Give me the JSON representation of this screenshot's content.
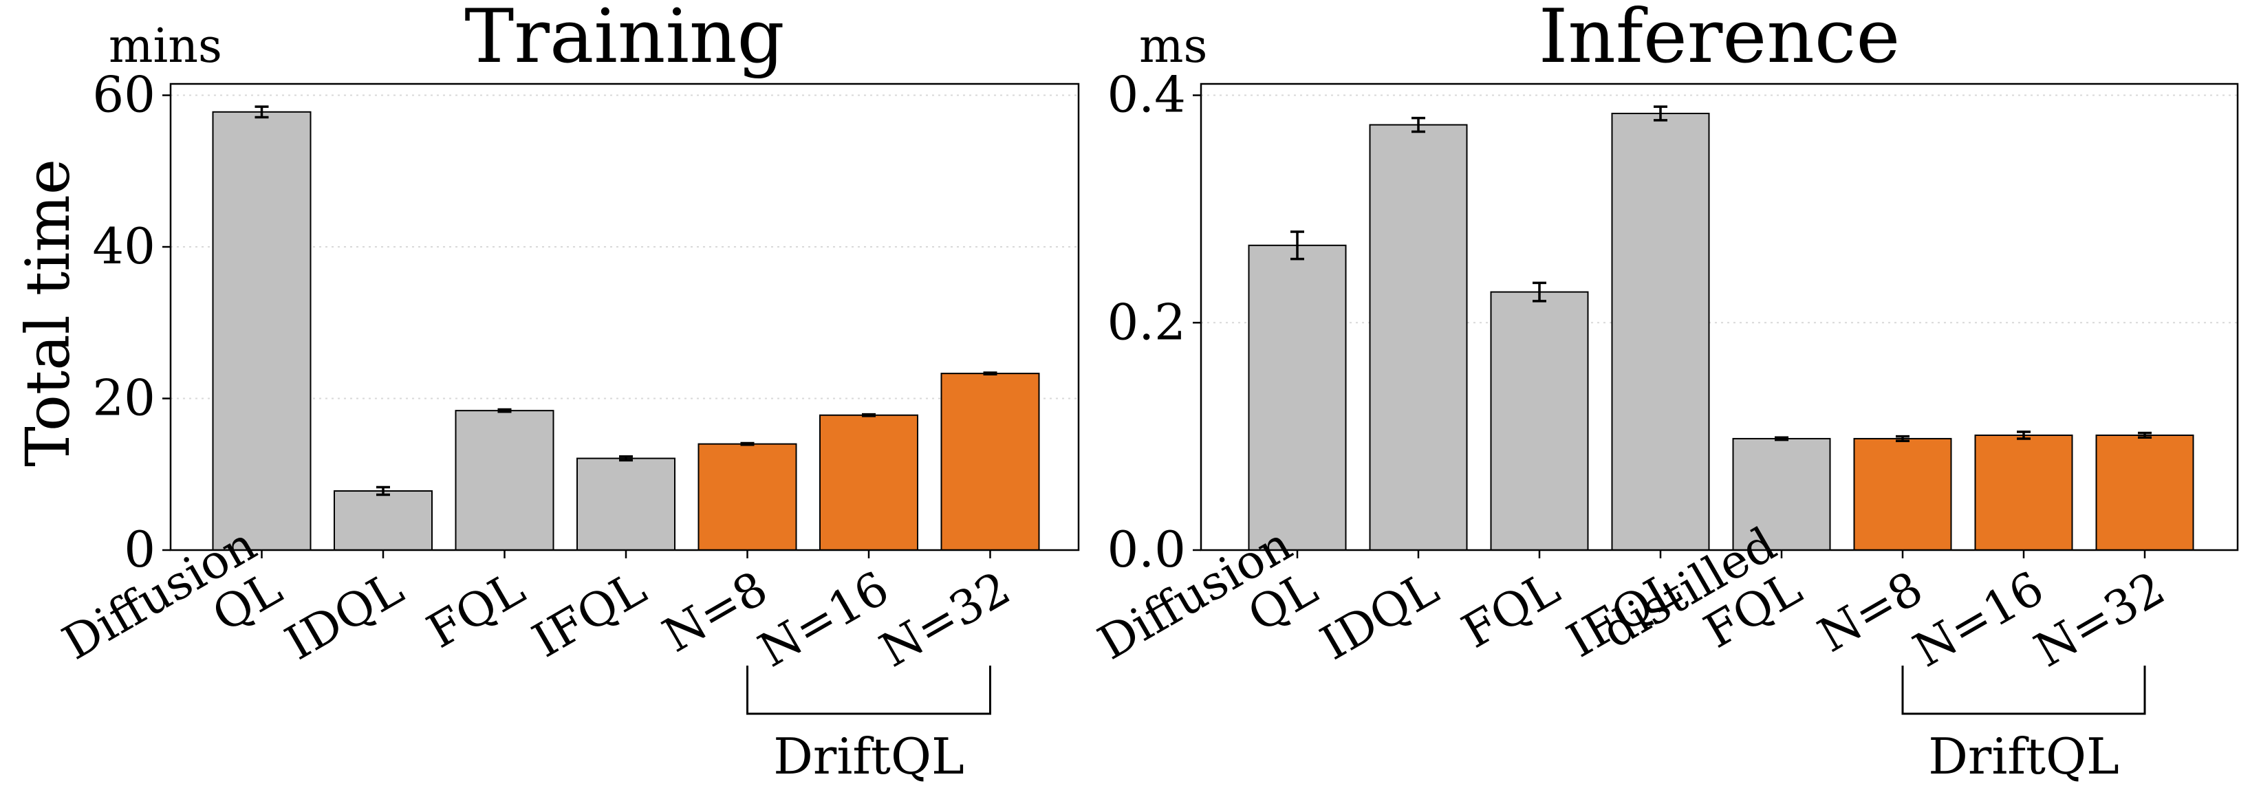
{
  "shared": {
    "ylabel": "Total time",
    "colors": {
      "baseline": "#c0c0c0",
      "driftql": "#e87722",
      "edge": "#000000",
      "grid": "#d9d9d9"
    }
  },
  "chart_data": [
    {
      "type": "bar",
      "title": "Training",
      "unit": "mins",
      "ylabel": "Total time",
      "ylim": [
        0,
        61.5
      ],
      "yticks": [
        0,
        20,
        40,
        60
      ],
      "ytick_labels": [
        "0",
        "20",
        "40",
        "60"
      ],
      "grid": true,
      "categories": [
        [
          "Diffusion",
          "QL"
        ],
        [
          "IDQL"
        ],
        [
          "FQL"
        ],
        [
          "IFQL"
        ],
        [
          "N=8"
        ],
        [
          "N=16"
        ],
        [
          "N=32"
        ]
      ],
      "values": [
        57.8,
        7.8,
        18.4,
        12.1,
        14.0,
        17.8,
        23.3
      ],
      "errors": [
        0.7,
        0.5,
        0.15,
        0.25,
        0.1,
        0.1,
        0.1
      ],
      "groups": [
        "baseline",
        "baseline",
        "baseline",
        "baseline",
        "driftql",
        "driftql",
        "driftql"
      ],
      "bracket": {
        "label": "DriftQL",
        "from": 4,
        "to": 6
      }
    },
    {
      "type": "bar",
      "title": "Inference",
      "unit": "ms",
      "ylabel": "",
      "ylim": [
        0,
        0.41
      ],
      "yticks": [
        0,
        0.2,
        0.4
      ],
      "ytick_labels": [
        "0.0",
        "0.2",
        "0.4"
      ],
      "grid": true,
      "categories": [
        [
          "Diffusion",
          "QL"
        ],
        [
          "IDQL"
        ],
        [
          "FQL"
        ],
        [
          "IFQL"
        ],
        [
          "distilled",
          "FQL"
        ],
        [
          "N=8"
        ],
        [
          "N=16"
        ],
        [
          "N=32"
        ]
      ],
      "values": [
        0.268,
        0.374,
        0.227,
        0.384,
        0.098,
        0.098,
        0.101,
        0.101
      ],
      "errors": [
        0.012,
        0.006,
        0.008,
        0.006,
        0.001,
        0.002,
        0.003,
        0.002
      ],
      "groups": [
        "baseline",
        "baseline",
        "baseline",
        "baseline",
        "baseline",
        "driftql",
        "driftql",
        "driftql"
      ],
      "bracket": {
        "label": "DriftQL",
        "from": 5,
        "to": 7
      }
    }
  ]
}
